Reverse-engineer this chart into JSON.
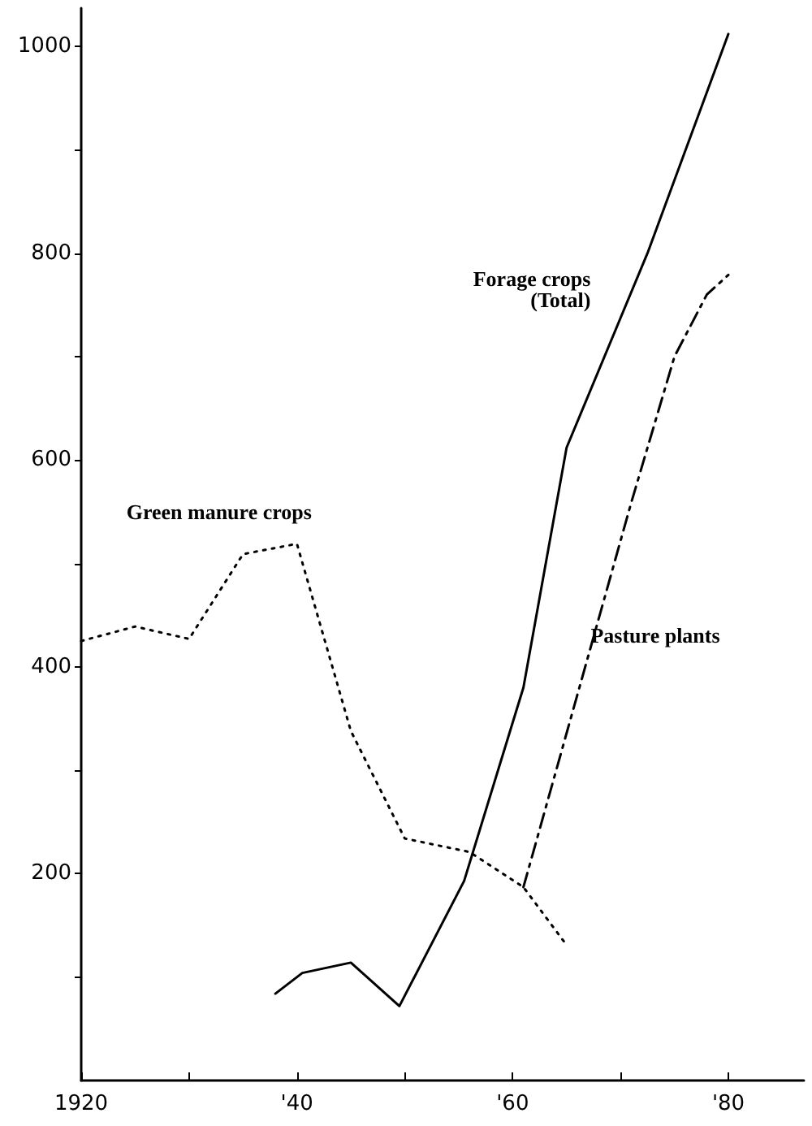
{
  "chart_data": {
    "type": "line",
    "xlim": [
      1920,
      1987
    ],
    "ylim": [
      0,
      1037
    ],
    "xticks": [
      {
        "value": 1920,
        "label": "1920"
      },
      {
        "value": 1930,
        "label": null
      },
      {
        "value": 1940,
        "label": "'40"
      },
      {
        "value": 1950,
        "label": null
      },
      {
        "value": 1960,
        "label": "'60"
      },
      {
        "value": 1970,
        "label": null
      },
      {
        "value": 1980,
        "label": "'80"
      }
    ],
    "yticks": [
      {
        "value": 100,
        "label": null
      },
      200,
      {
        "value": 300,
        "label": null
      },
      400,
      {
        "value": 500,
        "label": null
      },
      600,
      {
        "value": 700,
        "label": null
      },
      800,
      {
        "value": 900,
        "label": null
      },
      1000
    ],
    "grid": false,
    "legend": false,
    "marker": "none",
    "series": [
      {
        "name": "Green manure crops",
        "color": "#000000",
        "line_style": "dotted",
        "x": [
          1920,
          1925,
          1930,
          1935,
          1940,
          1945,
          1950,
          1956,
          1961,
          1965
        ],
        "values": [
          425,
          439,
          427,
          509,
          519,
          338,
          234,
          221,
          187,
          131
        ]
      },
      {
        "name": "Forage crops\n(Total)",
        "color": "#000000",
        "line_style": "solid",
        "x": [
          1938,
          1940.5,
          1945,
          1949.5,
          1955.5,
          1961,
          1965,
          1972.5,
          1980
        ],
        "values": [
          84,
          104,
          114,
          72,
          193,
          380,
          612,
          800,
          1012
        ]
      },
      {
        "name": "Pasture plants",
        "color": "#000000",
        "line_style": "dashed",
        "x": [
          1961,
          1971,
          1975,
          1978,
          1980
        ],
        "values": [
          187,
          559,
          700,
          760,
          779
        ]
      }
    ]
  }
}
